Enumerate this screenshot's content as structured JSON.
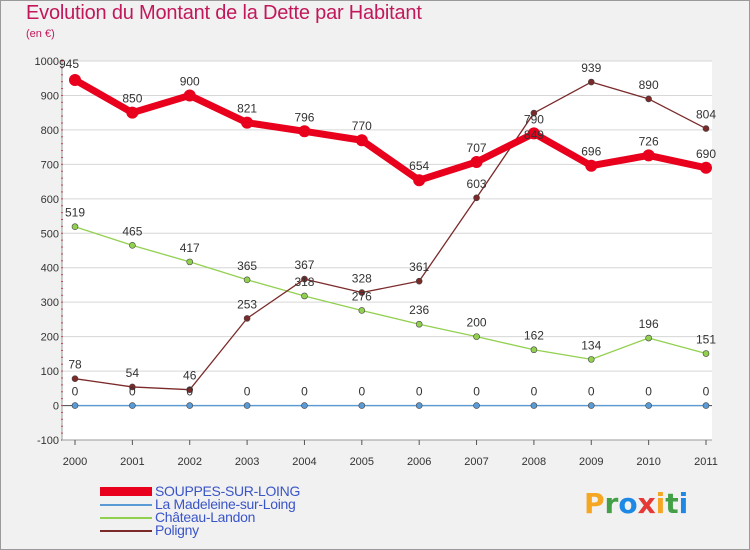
{
  "title": "Evolution du Montant de la Dette par Habitant",
  "unit": "(en €)",
  "colors": {
    "title": "#c2185b",
    "legend_text": "#3a55c8",
    "grid": "#d6d6d6",
    "zero_line": "#5a5a5a"
  },
  "logo": {
    "letters": [
      "P",
      "r",
      "o",
      "x",
      "i",
      "t",
      "i"
    ],
    "colors": [
      "#f5a623",
      "#43a047",
      "#1e88e5",
      "#e53935",
      "#f5a623",
      "#43a047",
      "#1e88e5"
    ]
  },
  "chart_data": {
    "type": "line",
    "title": "Evolution du Montant de la Dette par Habitant",
    "x": [
      "2000",
      "2001",
      "2002",
      "2003",
      "2004",
      "2005",
      "2006",
      "2007",
      "2008",
      "2009",
      "2010",
      "2011"
    ],
    "ylim": [
      -100,
      1000
    ],
    "yticks": [
      -100,
      0,
      100,
      200,
      300,
      400,
      500,
      600,
      700,
      800,
      900,
      1000
    ],
    "grid": "horizontal",
    "legend_position": "bottom-left",
    "series": [
      {
        "name": "SOUPPES-SUR-LOING",
        "color": "#e8001c",
        "values": [
          945,
          850,
          900,
          821,
          796,
          770,
          654,
          707,
          790,
          696,
          726,
          690
        ],
        "labels": [
          "945",
          "850",
          "900",
          "821",
          "796",
          "770",
          "654",
          "707",
          "790",
          "696",
          "726",
          "690"
        ]
      },
      {
        "name": "La Madeleine-sur-Loing",
        "color": "#5b9bd5",
        "values": [
          0,
          0,
          0,
          0,
          0,
          0,
          0,
          0,
          0,
          0,
          0,
          0
        ],
        "labels": [
          "0",
          "0",
          "0",
          "0",
          "0",
          "0",
          "0",
          "0",
          "0",
          "0",
          "0",
          "0"
        ]
      },
      {
        "name": "Château-Landon",
        "color": "#92d050",
        "values": [
          519,
          465,
          417,
          365,
          318,
          276,
          236,
          200,
          162,
          134,
          196,
          151
        ],
        "labels": [
          "519",
          "465",
          "417",
          "365",
          "318",
          "276",
          "236",
          "200",
          "162",
          "134",
          "196",
          "151"
        ]
      },
      {
        "name": "Poligny",
        "color": "#7b2a2a",
        "values": [
          78,
          54,
          46,
          253,
          367,
          328,
          361,
          603,
          849,
          939,
          890,
          804
        ],
        "labels": [
          "78",
          "54",
          "46",
          "253",
          "367",
          "328",
          "361",
          "603",
          "849",
          "939",
          "890",
          "804"
        ]
      }
    ]
  }
}
